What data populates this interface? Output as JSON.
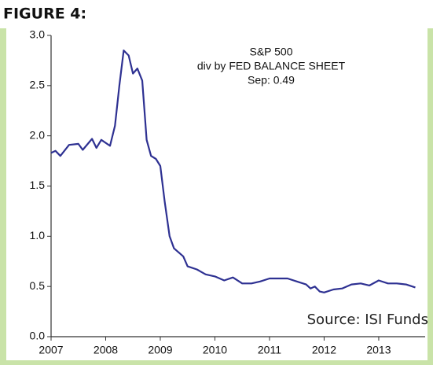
{
  "chart_data": {
    "type": "line",
    "figure_label": "FIGURE 4:",
    "title": "S&P 500",
    "subtitle": "div by FED BALANCE SHEET",
    "annotations": [
      "Sep: 0.49",
      "Source: ISI Funds"
    ],
    "x": [
      2007.0,
      2007.08,
      2007.17,
      2007.33,
      2007.5,
      2007.58,
      2007.75,
      2007.83,
      2007.92,
      2008.08,
      2008.17,
      2008.25,
      2008.33,
      2008.42,
      2008.5,
      2008.58,
      2008.67,
      2008.75,
      2008.83,
      2008.92,
      2009.0,
      2009.08,
      2009.17,
      2009.25,
      2009.42,
      2009.5,
      2009.67,
      2009.83,
      2010.0,
      2010.17,
      2010.33,
      2010.5,
      2010.67,
      2010.83,
      2011.0,
      2011.17,
      2011.33,
      2011.5,
      2011.67,
      2011.75,
      2011.83,
      2011.92,
      2012.0,
      2012.17,
      2012.33,
      2012.5,
      2012.67,
      2012.83,
      2013.0,
      2013.17,
      2013.33,
      2013.5,
      2013.67
    ],
    "series": [
      {
        "name": "S&P 500 div by FED BALANCE SHEET",
        "color": "#2e3192",
        "values": [
          1.83,
          1.85,
          1.8,
          1.91,
          1.92,
          1.86,
          1.97,
          1.88,
          1.96,
          1.9,
          2.1,
          2.5,
          2.85,
          2.8,
          2.62,
          2.67,
          2.55,
          1.96,
          1.8,
          1.77,
          1.7,
          1.35,
          1.0,
          0.88,
          0.8,
          0.7,
          0.67,
          0.62,
          0.6,
          0.56,
          0.59,
          0.53,
          0.53,
          0.55,
          0.58,
          0.58,
          0.58,
          0.55,
          0.52,
          0.48,
          0.5,
          0.45,
          0.44,
          0.47,
          0.48,
          0.52,
          0.53,
          0.51,
          0.56,
          0.53,
          0.53,
          0.52,
          0.49
        ]
      }
    ],
    "xlim": [
      2007,
      2013.85
    ],
    "xticks": [
      2007,
      2008,
      2009,
      2010,
      2011,
      2012,
      2013
    ],
    "ylim": [
      0,
      3
    ],
    "yticks": [
      {
        "value": 0,
        "label": "0.0"
      },
      0.5,
      {
        "value": 1,
        "label": "1.0"
      },
      1.5,
      {
        "value": 2,
        "label": "2.0"
      },
      2.5,
      {
        "value": 3,
        "label": "3.0"
      }
    ]
  }
}
